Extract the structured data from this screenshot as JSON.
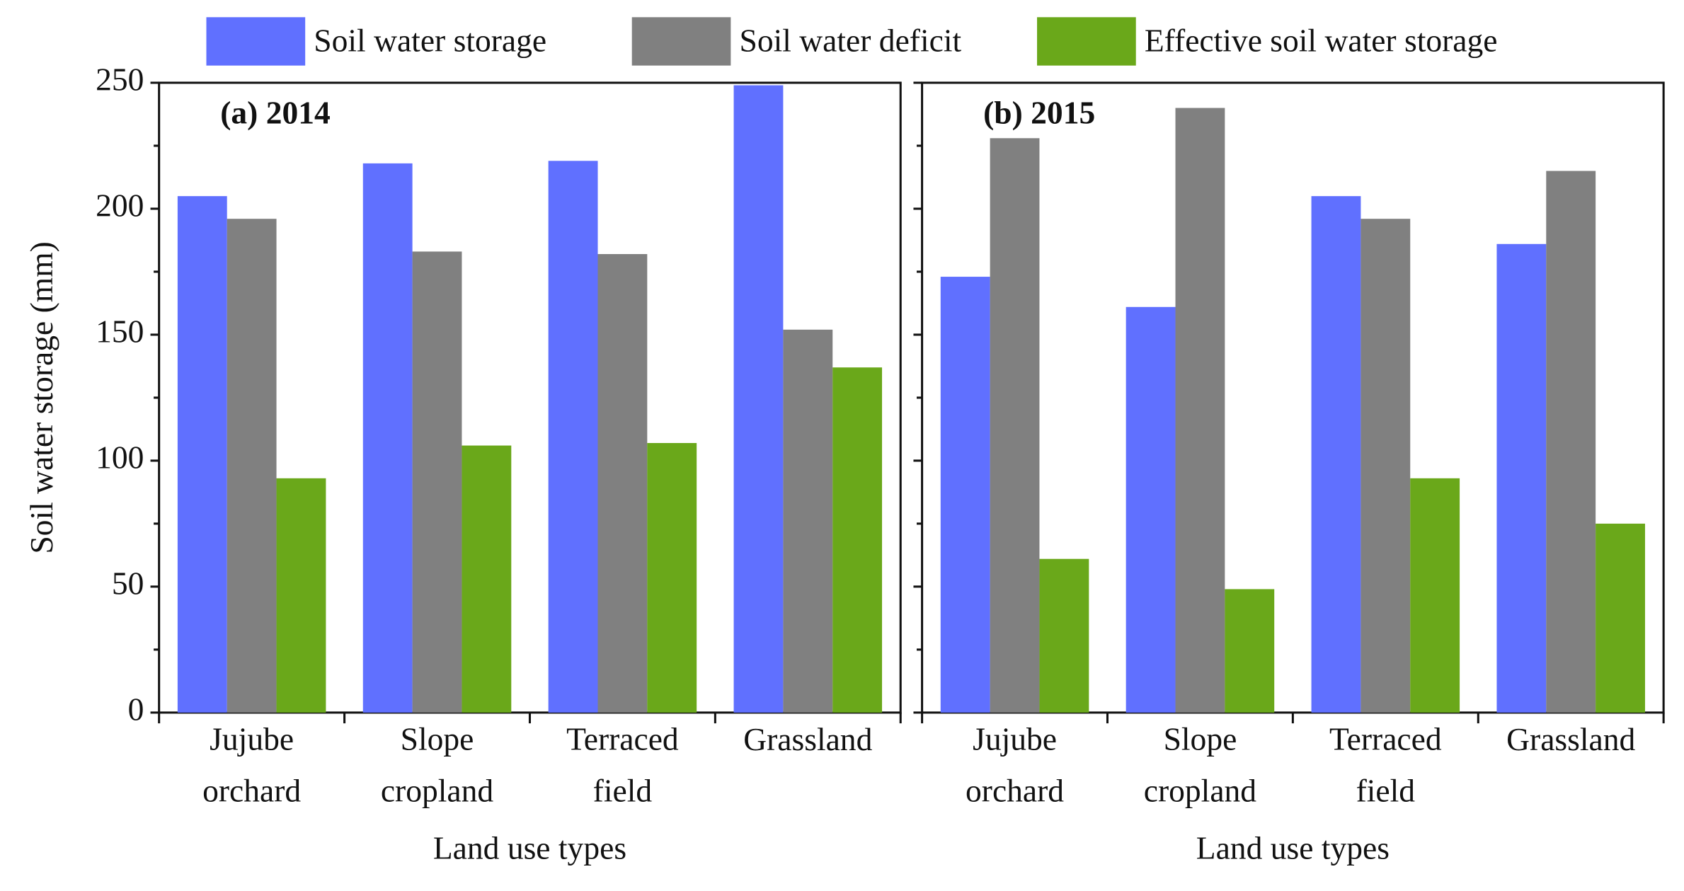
{
  "chart_data": [
    {
      "type": "bar",
      "title": "(a) 2014",
      "ylabel": "Soil water storage (mm)",
      "xlabel": "Land use types",
      "categories": [
        "Jujube orchard",
        "Slope cropland",
        "Terraced field",
        "Grassland"
      ],
      "series": [
        {
          "name": "Soil water storage",
          "color": "#6070ff",
          "values": [
            205,
            218,
            219,
            249
          ]
        },
        {
          "name": "Soil water deficit",
          "color": "#808080",
          "values": [
            196,
            183,
            182,
            152
          ]
        },
        {
          "name": "Effective soil water storage",
          "color": "#6aa81a",
          "values": [
            93,
            106,
            107,
            137
          ]
        }
      ],
      "ylim": [
        0,
        250
      ],
      "yticks": [
        0,
        50,
        100,
        150,
        200,
        250
      ]
    },
    {
      "type": "bar",
      "title": "(b) 2015",
      "xlabel": "Land use types",
      "categories": [
        "Jujube orchard",
        "Slope cropland",
        "Terraced field",
        "Grassland"
      ],
      "series": [
        {
          "name": "Soil water storage",
          "color": "#6070ff",
          "values": [
            173,
            161,
            205,
            186
          ]
        },
        {
          "name": "Soil water deficit",
          "color": "#808080",
          "values": [
            228,
            240,
            196,
            215
          ]
        },
        {
          "name": "Effective soil water storage",
          "color": "#6aa81a",
          "values": [
            61,
            49,
            93,
            75
          ]
        }
      ],
      "ylim": [
        0,
        250
      ]
    }
  ]
}
